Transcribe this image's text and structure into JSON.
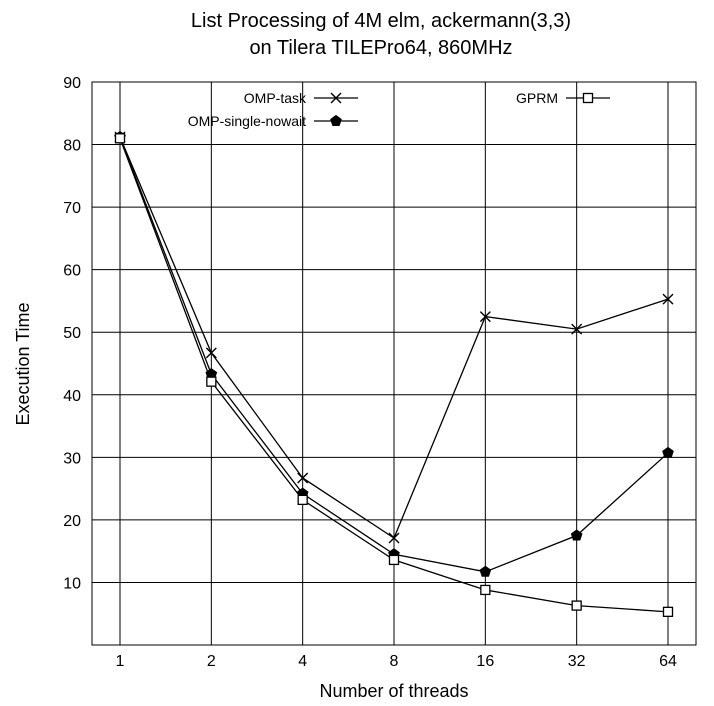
{
  "chart_data": {
    "type": "line",
    "title_line1": "List Processing of 4M elm, ackermann(3,3)",
    "title_line2": "on Tilera TILEPro64, 860MHz",
    "xlabel": "Number of threads",
    "ylabel": "Execution Time",
    "x_scale": "log2",
    "categories": [
      "1",
      "2",
      "4",
      "8",
      "16",
      "32",
      "64"
    ],
    "x": [
      1,
      2,
      4,
      8,
      16,
      32,
      64
    ],
    "ylim": [
      0,
      90
    ],
    "y_ticks": [
      "10",
      "20",
      "30",
      "40",
      "50",
      "60",
      "70",
      "80",
      "90"
    ],
    "grid": true,
    "legend_position": "top",
    "series": [
      {
        "name": "OMP-task",
        "marker": "x",
        "values": [
          81.2,
          46.7,
          26.7,
          17.1,
          52.5,
          50.5,
          55.3
        ]
      },
      {
        "name": "OMP-single-nowait",
        "marker": "pentagon",
        "values": [
          81.2,
          43.3,
          24.2,
          14.5,
          11.7,
          17.5,
          30.7
        ]
      },
      {
        "name": "GPRM",
        "marker": "square",
        "values": [
          81.0,
          42.1,
          23.2,
          13.6,
          8.8,
          6.3,
          5.3
        ]
      }
    ]
  }
}
